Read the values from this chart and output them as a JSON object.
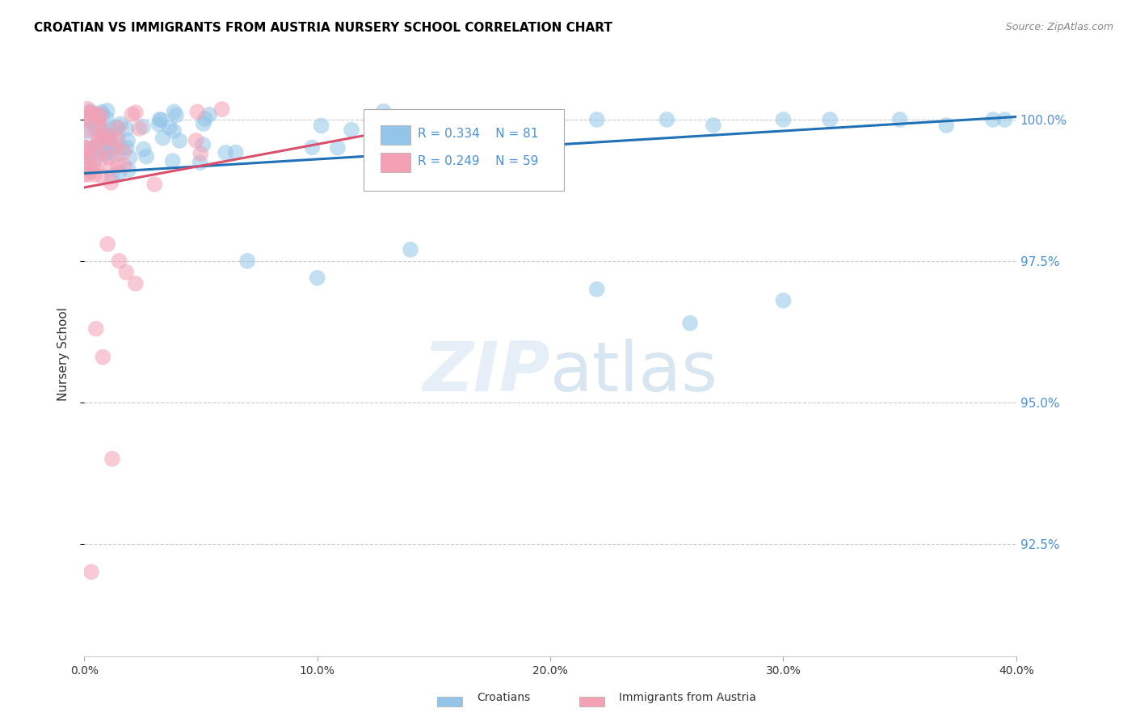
{
  "title": "CROATIAN VS IMMIGRANTS FROM AUSTRIA NURSERY SCHOOL CORRELATION CHART",
  "source": "Source: ZipAtlas.com",
  "ylabel": "Nursery School",
  "ylabel_ticks": [
    "100.0%",
    "97.5%",
    "95.0%",
    "92.5%"
  ],
  "ylabel_values": [
    1.0,
    0.975,
    0.95,
    0.925
  ],
  "ylim": [
    0.905,
    1.012
  ],
  "xlim": [
    0.0,
    0.4
  ],
  "watermark_zip": "ZIP",
  "watermark_atlas": "atlas",
  "legend_blue_R": "R = 0.334",
  "legend_blue_N": "N = 81",
  "legend_pink_R": "R = 0.249",
  "legend_pink_N": "N = 59",
  "legend_blue_label": "Croatians",
  "legend_pink_label": "Immigrants from Austria",
  "blue_color": "#92C5E8",
  "pink_color": "#F4A0B5",
  "trendline_blue": "#2171B5",
  "trendline_pink": "#D94F6C",
  "grid_color": "#CCCCCC",
  "tick_label_color": "#4A90D9",
  "background_color": "#FFFFFF",
  "blue_trend_x0": 0.0,
  "blue_trend_x1": 0.4,
  "blue_trend_y0": 0.9905,
  "blue_trend_y1": 1.0005,
  "pink_trend_x0": 0.0,
  "pink_trend_x1": 0.17,
  "pink_trend_y0": 0.988,
  "pink_trend_y1": 1.001
}
